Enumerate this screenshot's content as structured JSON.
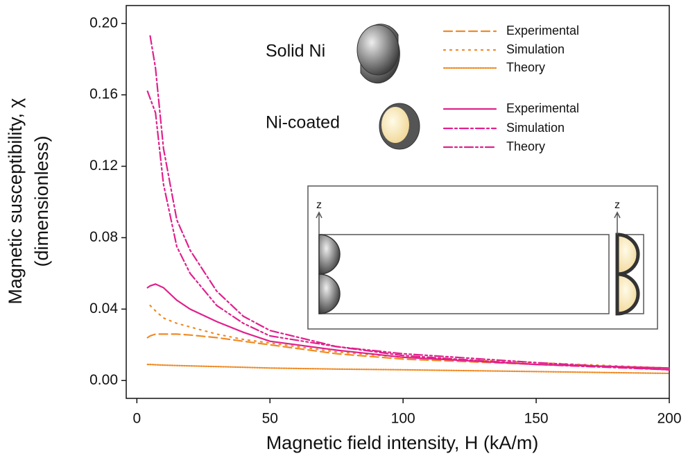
{
  "chart_data": {
    "type": "line",
    "x_label": "Magnetic field intensity, H (kA/m)",
    "y_label": [
      "Magnetic susceptibility, χ",
      "(dimensionless)"
    ],
    "xlim": [
      -4,
      200
    ],
    "ylim": [
      -0.01,
      0.21
    ],
    "xticks": [
      0,
      50,
      100,
      150,
      200
    ],
    "yticks": [
      {
        "value": 0,
        "label": "0.00"
      },
      {
        "value": 0.04,
        "label": "0.04"
      },
      {
        "value": 0.08,
        "label": "0.08"
      },
      {
        "value": 0.12,
        "label": "0.12"
      },
      {
        "value": 0.16,
        "label": "0.16"
      },
      {
        "value": 0.2,
        "label": "0.20"
      }
    ],
    "x": [
      4,
      5,
      7,
      10,
      15,
      20,
      30,
      40,
      50,
      75,
      100,
      150,
      200
    ],
    "groups": [
      "Solid Ni",
      "Ni-coated"
    ],
    "series": [
      {
        "name": "Experimental",
        "group": 0,
        "color": "#f08a24",
        "dash": "12,6",
        "values": [
          0.024,
          0.025,
          0.026,
          0.026,
          0.026,
          0.0255,
          0.024,
          0.022,
          0.02,
          0.015,
          0.012,
          0.009,
          0.007
        ]
      },
      {
        "name": "Simulation",
        "group": 0,
        "color": "#f08a24",
        "dash": "2,7",
        "values": [
          null,
          0.042,
          0.039,
          0.035,
          0.032,
          0.03,
          0.026,
          0.023,
          0.021,
          0.016,
          0.013,
          0.01,
          0.007
        ]
      },
      {
        "name": "Theory",
        "group": 0,
        "color": "#f08a24",
        "dash": "1.5,2",
        "values": [
          0.009,
          0.009,
          0.0088,
          0.0086,
          0.0084,
          0.0082,
          0.0078,
          0.0074,
          0.007,
          0.0064,
          0.006,
          0.005,
          0.004
        ]
      },
      {
        "name": "Experimental",
        "group": 1,
        "color": "#e0208c",
        "dash": "none",
        "values": [
          0.052,
          0.053,
          0.054,
          0.052,
          0.045,
          0.04,
          0.033,
          0.027,
          0.022,
          0.017,
          0.013,
          0.009,
          0.007
        ]
      },
      {
        "name": "Simulation",
        "group": 1,
        "color": "#e0208c",
        "dash": "12,4,3,4",
        "values": [
          null,
          0.193,
          0.175,
          0.13,
          0.09,
          0.073,
          0.05,
          0.036,
          0.028,
          0.019,
          0.014,
          0.009,
          0.006
        ]
      },
      {
        "name": "Theory",
        "group": 1,
        "color": "#e0208c",
        "dash": "12,4,3,4,3,4",
        "values": [
          0.162,
          0.158,
          0.15,
          0.11,
          0.075,
          0.06,
          0.042,
          0.032,
          0.025,
          0.019,
          0.015,
          0.01,
          0.006
        ]
      }
    ],
    "inset": {
      "axis_labels": [
        "z",
        "z"
      ]
    }
  }
}
